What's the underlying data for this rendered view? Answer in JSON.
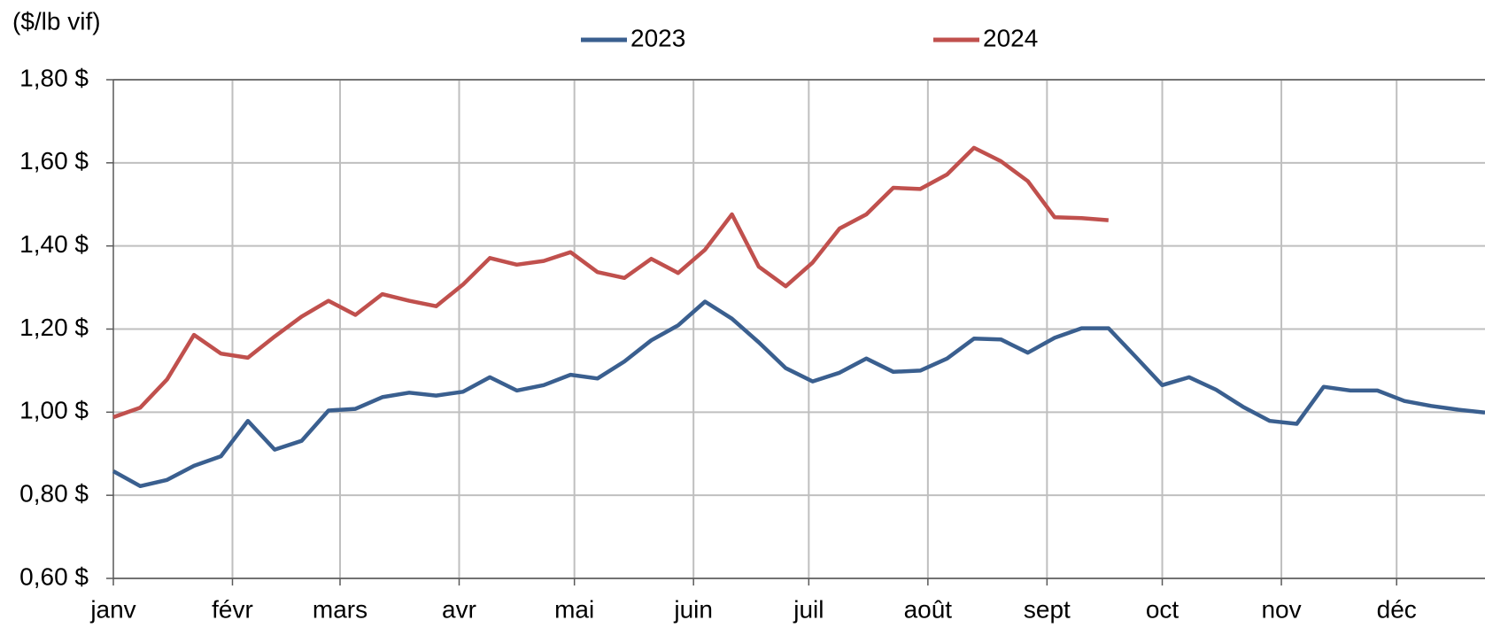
{
  "chart_data": {
    "type": "line",
    "y_label": "($/lb vif)",
    "x": [
      0,
      7,
      14,
      21,
      28,
      35,
      42,
      49,
      56,
      63,
      70,
      77,
      84,
      91,
      98,
      105,
      112,
      119,
      126,
      133,
      140,
      147,
      154,
      161,
      168,
      175,
      182,
      189,
      196,
      203,
      210,
      217,
      224,
      231,
      238,
      245,
      252,
      259,
      266,
      273,
      280,
      287,
      294,
      301,
      308,
      315,
      322,
      329,
      336,
      343,
      350,
      357
    ],
    "series": [
      {
        "name": "2023",
        "color": "#3a5f8f",
        "values": [
          0.858,
          0.822,
          0.837,
          0.871,
          0.894,
          0.979,
          0.91,
          0.931,
          1.004,
          1.008,
          1.036,
          1.047,
          1.04,
          1.049,
          1.084,
          1.052,
          1.065,
          1.09,
          1.081,
          1.122,
          1.173,
          1.209,
          1.266,
          1.225,
          1.168,
          1.106,
          1.074,
          1.095,
          1.129,
          1.097,
          1.1,
          1.129,
          1.177,
          1.175,
          1.143,
          1.179,
          1.202,
          1.202,
          1.134,
          1.065,
          1.084,
          1.054,
          1.013,
          0.979,
          0.972,
          1.061,
          1.052,
          1.052,
          1.027,
          1.015,
          1.006,
          0.999
        ]
      },
      {
        "name": "2024",
        "color": "#c0504d",
        "values": [
          0.988,
          1.011,
          1.079,
          1.186,
          1.141,
          1.131,
          1.182,
          1.23,
          1.268,
          1.234,
          1.284,
          1.268,
          1.255,
          1.307,
          1.371,
          1.355,
          1.364,
          1.385,
          1.337,
          1.323,
          1.369,
          1.335,
          1.391,
          1.476,
          1.35,
          1.303,
          1.36,
          1.442,
          1.476,
          1.54,
          1.537,
          1.572,
          1.636,
          1.604,
          1.556,
          1.469,
          1.467,
          1.462,
          null,
          null,
          null,
          null,
          null,
          null,
          null,
          null,
          null,
          null,
          null,
          null,
          null,
          null
        ]
      }
    ],
    "xlim": [
      0,
      357
    ],
    "xticks": [
      {
        "value": 0,
        "label": "janv"
      },
      {
        "value": 31,
        "label": "févr"
      },
      {
        "value": 59,
        "label": "mars"
      },
      {
        "value": 90,
        "label": "avr"
      },
      {
        "value": 120,
        "label": "mai"
      },
      {
        "value": 151,
        "label": "juin"
      },
      {
        "value": 181,
        "label": "juil"
      },
      {
        "value": 212,
        "label": "août"
      },
      {
        "value": 243,
        "label": "sept"
      },
      {
        "value": 273,
        "label": "oct"
      },
      {
        "value": 304,
        "label": "nov"
      },
      {
        "value": 334,
        "label": "déc"
      }
    ],
    "ylim": [
      0.6,
      1.8
    ],
    "yticks": [
      {
        "value": 0.6,
        "label": "0,60 $"
      },
      {
        "value": 0.8,
        "label": "0,80 $"
      },
      {
        "value": 1.0,
        "label": "1,00 $"
      },
      {
        "value": 1.2,
        "label": "1,20 $"
      },
      {
        "value": 1.4,
        "label": "1,40 $"
      },
      {
        "value": 1.6,
        "label": "1,60 $"
      },
      {
        "value": 1.8,
        "label": "1,80 $"
      }
    ],
    "grid": true,
    "legend": "top"
  }
}
